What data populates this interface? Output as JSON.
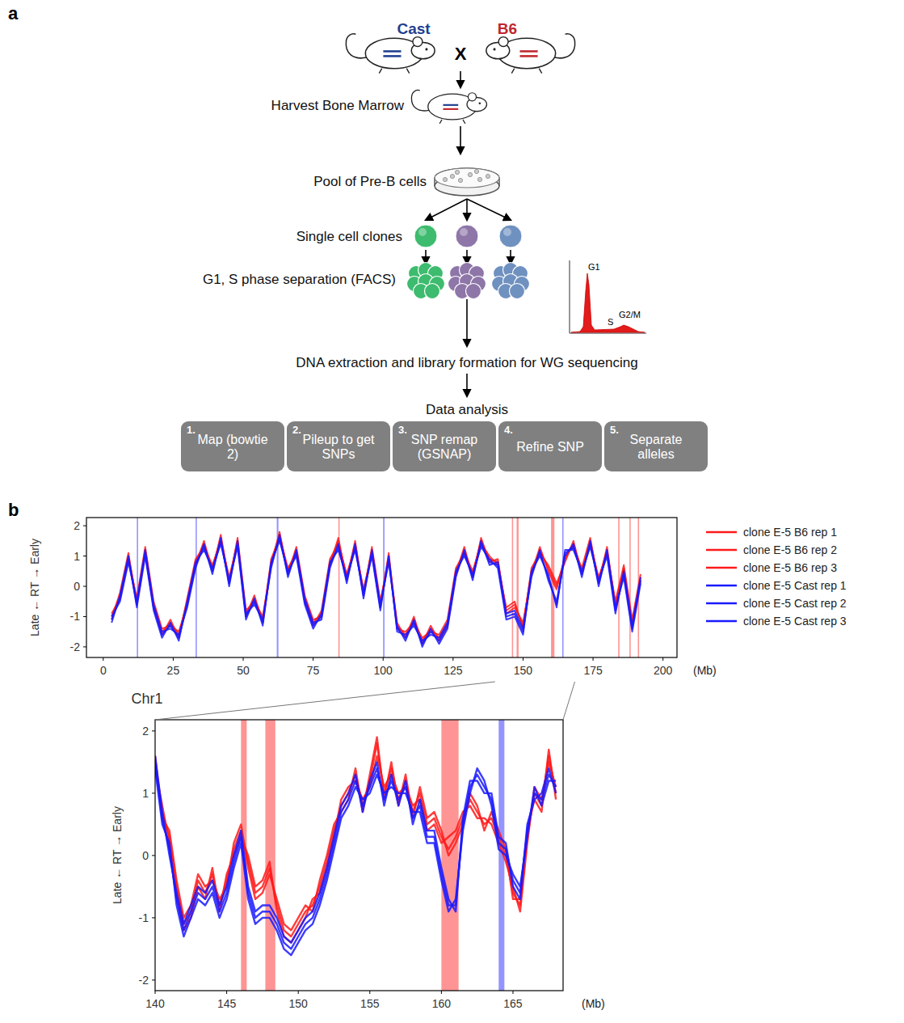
{
  "diagram": {
    "label": "a",
    "cross": {
      "left": {
        "label": "Cast",
        "color": "#1f3f8f"
      },
      "symbol": "X",
      "right": {
        "label": "B6",
        "color": "#c0262d"
      }
    },
    "steps": [
      "Harvest Bone Marrow",
      "Pool of Pre-B cells",
      "Single cell clones",
      "G1, S phase separation (FACS)",
      "DNA extraction and library formation for WG sequencing",
      "Data analysis"
    ],
    "clone_colors": [
      "#3dbb6e",
      "#8e76a8",
      "#6f91c0"
    ],
    "facs_labels": [
      "G1",
      "S",
      "G2/M"
    ],
    "pipeline": [
      {
        "number": "1.",
        "label": "Map (bowtie 2)"
      },
      {
        "number": "2.",
        "label": "Pileup to get SNPs"
      },
      {
        "number": "3.",
        "label": "SNP remap (GSNAP)"
      },
      {
        "number": "4.",
        "label": "Refine SNP"
      },
      {
        "number": "5.",
        "label": "Separate alleles"
      }
    ]
  },
  "chart_data": [
    {
      "type": "line",
      "panel_label": "b",
      "y_label": "Late ← RT → Early",
      "x_label": "Chr1",
      "x_unit": "(Mb)",
      "xlim": [
        -6,
        205
      ],
      "ylim": [
        -2.35,
        2.27
      ],
      "xticks": [
        0,
        25,
        50,
        75,
        100,
        125,
        150,
        175,
        200
      ],
      "yticks": [
        -2,
        -1,
        0,
        1,
        2
      ],
      "legend": "right",
      "x": [
        3,
        6,
        9,
        12,
        15,
        18,
        21,
        24,
        27,
        30,
        33,
        36,
        39,
        42,
        45,
        48,
        51,
        54,
        57,
        60,
        63,
        66,
        69,
        72,
        75,
        78,
        81,
        84,
        87,
        90,
        93,
        96,
        99,
        102,
        105,
        108,
        111,
        114,
        117,
        120,
        123,
        126,
        129,
        132,
        135,
        138,
        141,
        144,
        147,
        150,
        153,
        156,
        159,
        162,
        165,
        168,
        171,
        174,
        177,
        180,
        183,
        186,
        189,
        192
      ],
      "series": [
        {
          "name": "clone E-5 B6 rep 1",
          "color": "#ff1a1a",
          "values": [
            -1.0,
            -0.3,
            1.0,
            -0.5,
            1.2,
            -0.6,
            -1.5,
            -1.2,
            -1.6,
            -0.5,
            0.8,
            1.4,
            0.6,
            1.6,
            0.2,
            1.5,
            -0.9,
            -0.4,
            -1.1,
            0.8,
            1.7,
            0.5,
            1.2,
            -0.4,
            -1.2,
            -0.9,
            0.8,
            1.5,
            0.3,
            1.4,
            -0.2,
            1.2,
            -0.6,
            1.0,
            -1.3,
            -1.6,
            -1.1,
            -1.8,
            -1.4,
            -1.7,
            -1.2,
            0.5,
            1.2,
            0.4,
            1.5,
            0.9,
            0.8,
            -0.8,
            -0.6,
            -1.3,
            0.5,
            1.2,
            0.6,
            0.0,
            0.9,
            1.4,
            0.5,
            1.5,
            0.2,
            1.2,
            -0.6,
            0.6,
            -1.2,
            0.3
          ]
        },
        {
          "name": "clone E-5 B6 rep 2",
          "color": "#ff1a1a",
          "values": [
            -1.1,
            -0.2,
            1.1,
            -0.6,
            1.1,
            -0.7,
            -1.6,
            -1.1,
            -1.7,
            -0.4,
            0.9,
            1.3,
            0.7,
            1.5,
            0.3,
            1.4,
            -1.0,
            -0.3,
            -1.2,
            0.9,
            1.6,
            0.6,
            1.1,
            -0.5,
            -1.3,
            -0.8,
            0.9,
            1.4,
            0.4,
            1.3,
            -0.1,
            1.1,
            -0.7,
            1.1,
            -1.4,
            -1.5,
            -1.2,
            -1.7,
            -1.5,
            -1.6,
            -1.1,
            0.6,
            1.1,
            0.5,
            1.4,
            1.0,
            0.7,
            -0.7,
            -0.5,
            -1.4,
            0.6,
            1.1,
            0.7,
            0.1,
            0.8,
            1.5,
            0.4,
            1.4,
            0.3,
            1.1,
            -0.5,
            0.7,
            -1.1,
            0.4
          ]
        },
        {
          "name": "clone E-5 B6 rep 3",
          "color": "#ff1a1a",
          "values": [
            -0.9,
            -0.4,
            0.9,
            -0.4,
            1.3,
            -0.5,
            -1.4,
            -1.3,
            -1.5,
            -0.6,
            0.7,
            1.5,
            0.5,
            1.7,
            0.1,
            1.6,
            -0.8,
            -0.5,
            -1.0,
            0.7,
            1.8,
            0.4,
            1.3,
            -0.3,
            -1.1,
            -1.0,
            0.7,
            1.6,
            0.2,
            1.5,
            -0.3,
            1.3,
            -0.5,
            0.9,
            -1.2,
            -1.7,
            -1.0,
            -1.9,
            -1.3,
            -1.8,
            -1.3,
            0.4,
            1.3,
            0.3,
            1.6,
            0.8,
            0.9,
            -0.9,
            -0.7,
            -1.2,
            0.4,
            1.3,
            0.5,
            -0.1,
            1.0,
            1.3,
            0.6,
            1.6,
            0.1,
            1.3,
            -0.7,
            0.5,
            -1.3,
            0.2
          ]
        },
        {
          "name": "clone E-5 Cast rep 1",
          "color": "#1a1aff",
          "values": [
            -1.1,
            -0.4,
            0.9,
            -0.6,
            1.1,
            -0.7,
            -1.6,
            -1.3,
            -1.7,
            -0.6,
            0.7,
            1.3,
            0.5,
            1.5,
            0.1,
            1.4,
            -1.0,
            -0.5,
            -1.2,
            0.7,
            1.6,
            0.4,
            1.1,
            -0.5,
            -1.3,
            -1.0,
            0.7,
            1.3,
            0.2,
            1.3,
            -0.3,
            1.1,
            -0.7,
            0.9,
            -1.4,
            -1.7,
            -1.2,
            -1.9,
            -1.5,
            -1.8,
            -1.3,
            0.4,
            1.1,
            0.3,
            1.4,
            0.8,
            0.7,
            -1.0,
            -0.9,
            -1.5,
            0.4,
            1.1,
            0.3,
            -0.6,
            1.1,
            1.3,
            0.4,
            1.4,
            0.1,
            1.1,
            -0.8,
            0.4,
            -1.4,
            0.2
          ]
        },
        {
          "name": "clone E-5 Cast rep 2",
          "color": "#1a1aff",
          "values": [
            -1.2,
            -0.3,
            1.0,
            -0.7,
            1.0,
            -0.8,
            -1.7,
            -1.2,
            -1.8,
            -0.5,
            0.8,
            1.2,
            0.6,
            1.4,
            0.2,
            1.3,
            -1.1,
            -0.4,
            -1.3,
            0.8,
            1.5,
            0.5,
            1.0,
            -0.6,
            -1.4,
            -0.9,
            0.8,
            1.2,
            0.3,
            1.2,
            -0.2,
            1.0,
            -0.8,
            1.0,
            -1.5,
            -1.6,
            -1.3,
            -1.8,
            -1.6,
            -1.7,
            -1.2,
            0.5,
            1.0,
            0.4,
            1.3,
            0.9,
            0.6,
            -1.1,
            -1.0,
            -1.6,
            0.5,
            1.0,
            0.4,
            -0.7,
            1.2,
            1.2,
            0.5,
            1.3,
            0.2,
            1.0,
            -0.9,
            0.5,
            -1.3,
            0.3
          ]
        },
        {
          "name": "clone E-5 Cast rep 3",
          "color": "#1a1aff",
          "values": [
            -1.0,
            -0.5,
            0.8,
            -0.5,
            1.2,
            -0.6,
            -1.5,
            -1.4,
            -1.6,
            -0.7,
            0.6,
            1.4,
            0.4,
            1.6,
            0.0,
            1.5,
            -0.9,
            -0.6,
            -1.1,
            0.6,
            1.7,
            0.3,
            1.2,
            -0.4,
            -1.2,
            -1.1,
            0.6,
            1.4,
            0.1,
            1.4,
            -0.4,
            1.2,
            -0.6,
            0.8,
            -1.3,
            -1.8,
            -1.1,
            -2.0,
            -1.4,
            -1.9,
            -1.4,
            0.3,
            1.2,
            0.2,
            1.5,
            0.7,
            0.8,
            -0.9,
            -0.8,
            -1.4,
            0.3,
            1.2,
            0.2,
            -0.5,
            1.0,
            1.4,
            0.3,
            1.5,
            0.0,
            1.2,
            -0.7,
            0.3,
            -1.5,
            0.1
          ]
        }
      ],
      "regions": [
        {
          "start": 12,
          "end": 12.4,
          "color": "#0000ff"
        },
        {
          "start": 33,
          "end": 33.4,
          "color": "#0000ff"
        },
        {
          "start": 62,
          "end": 62.6,
          "color": "#0000ff"
        },
        {
          "start": 100,
          "end": 100.5,
          "color": "#0000ff"
        },
        {
          "start": 164,
          "end": 164.4,
          "color": "#0000ff"
        },
        {
          "start": 84,
          "end": 84.4,
          "color": "#ff0000"
        },
        {
          "start": 146,
          "end": 146.4,
          "color": "#ff0000"
        },
        {
          "start": 147.7,
          "end": 148.4,
          "color": "#ff0000"
        },
        {
          "start": 160,
          "end": 161.2,
          "color": "#ff0000"
        },
        {
          "start": 184,
          "end": 184.4,
          "color": "#ff0000"
        },
        {
          "start": 188,
          "end": 188.4,
          "color": "#ff0000"
        },
        {
          "start": 191,
          "end": 191.4,
          "color": "#ff0000"
        }
      ]
    },
    {
      "type": "line",
      "y_label": "Late ← RT → Early",
      "x_unit": "(Mb)",
      "xlim": [
        140,
        168.5
      ],
      "ylim": [
        -2.17,
        2.18
      ],
      "xticks": [
        140,
        145,
        150,
        155,
        160,
        165
      ],
      "yticks": [
        -2,
        -1,
        0,
        1,
        2
      ],
      "x": [
        140,
        140.5,
        141,
        141.5,
        142,
        142.5,
        143,
        143.5,
        144,
        144.5,
        145,
        145.5,
        146,
        146.5,
        147,
        147.5,
        148,
        148.5,
        149,
        149.5,
        150,
        150.5,
        151,
        151.5,
        152,
        152.5,
        153,
        153.5,
        154,
        154.5,
        155,
        155.5,
        156,
        156.5,
        157,
        157.5,
        158,
        158.5,
        159,
        159.5,
        160,
        160.5,
        161,
        161.5,
        162,
        162.5,
        163,
        163.5,
        164,
        164.5,
        165,
        165.5,
        166,
        166.5,
        167,
        167.5,
        168
      ],
      "series": [
        {
          "color": "#ff1a1a",
          "values": [
            1.5,
            0.7,
            0.3,
            -0.5,
            -1.1,
            -0.9,
            -0.4,
            -0.6,
            -0.3,
            -0.8,
            -0.4,
            0.1,
            0.4,
            -0.1,
            -0.6,
            -0.5,
            -0.2,
            -0.8,
            -1.2,
            -1.3,
            -1.1,
            -0.9,
            -0.8,
            -0.5,
            -0.1,
            0.4,
            0.8,
            1.0,
            1.3,
            0.8,
            1.2,
            1.8,
            1.0,
            1.4,
            0.9,
            1.2,
            0.7,
            1.0,
            0.5,
            0.6,
            0.3,
            0.1,
            0.3,
            0.6,
            0.9,
            0.7,
            0.5,
            0.6,
            0.3,
            0.0,
            -0.6,
            -0.8,
            0.3,
            1.0,
            0.8,
            1.6,
            1.0
          ]
        },
        {
          "color": "#ff1a1a",
          "values": [
            1.4,
            0.8,
            0.2,
            -0.6,
            -1.2,
            -1.0,
            -0.5,
            -0.7,
            -0.2,
            -0.9,
            -0.3,
            0.0,
            0.3,
            0.0,
            -0.5,
            -0.4,
            -0.1,
            -0.9,
            -1.3,
            -1.4,
            -1.2,
            -1.0,
            -0.7,
            -0.6,
            -0.2,
            0.3,
            0.9,
            1.1,
            1.2,
            0.9,
            1.1,
            1.6,
            1.1,
            1.3,
            1.0,
            1.1,
            0.8,
            0.9,
            0.4,
            0.5,
            0.2,
            0.3,
            0.4,
            0.7,
            0.8,
            0.6,
            0.6,
            0.5,
            0.2,
            -0.1,
            -0.5,
            -0.9,
            0.2,
            1.1,
            0.9,
            1.5,
            1.1
          ]
        },
        {
          "color": "#ff1a1a",
          "values": [
            1.6,
            0.6,
            0.4,
            -0.4,
            -1.0,
            -0.8,
            -0.3,
            -0.5,
            -0.4,
            -0.7,
            -0.5,
            0.2,
            0.5,
            -0.2,
            -0.7,
            -0.6,
            -0.3,
            -0.7,
            -1.1,
            -1.2,
            -1.0,
            -0.8,
            -0.9,
            -0.4,
            0.0,
            0.5,
            0.7,
            0.9,
            1.4,
            0.7,
            1.3,
            1.9,
            0.9,
            1.5,
            0.8,
            1.3,
            0.6,
            1.1,
            0.6,
            0.7,
            0.4,
            0.0,
            0.2,
            0.5,
            1.0,
            0.8,
            0.4,
            0.7,
            0.4,
            0.1,
            -0.7,
            -0.7,
            0.4,
            0.9,
            0.7,
            1.7,
            0.9
          ]
        },
        {
          "color": "#1a1aff",
          "values": [
            1.5,
            0.6,
            0.1,
            -0.7,
            -1.2,
            -0.9,
            -0.6,
            -0.7,
            -0.5,
            -0.9,
            -0.6,
            -0.1,
            0.3,
            -0.6,
            -1.0,
            -0.9,
            -0.9,
            -1.1,
            -1.4,
            -1.5,
            -1.3,
            -1.1,
            -1.0,
            -0.7,
            -0.3,
            0.2,
            0.7,
            0.9,
            1.2,
            0.8,
            1.1,
            1.4,
            0.9,
            1.2,
            0.9,
            1.1,
            0.6,
            0.8,
            0.3,
            0.3,
            -0.3,
            -0.8,
            -0.8,
            0.5,
            1.1,
            1.3,
            1.1,
            0.9,
            0.2,
            0.1,
            -0.4,
            -0.6,
            0.4,
            1.0,
            0.9,
            1.3,
            1.1
          ]
        },
        {
          "color": "#1a1aff",
          "values": [
            1.4,
            0.5,
            0.2,
            -0.8,
            -1.3,
            -1.0,
            -0.7,
            -0.8,
            -0.6,
            -1.0,
            -0.7,
            -0.2,
            0.2,
            -0.7,
            -1.1,
            -1.0,
            -1.0,
            -1.2,
            -1.5,
            -1.6,
            -1.4,
            -1.2,
            -1.1,
            -0.8,
            -0.4,
            0.1,
            0.6,
            0.8,
            1.1,
            0.9,
            1.0,
            1.3,
            1.0,
            1.1,
            1.0,
            1.0,
            0.7,
            0.7,
            0.2,
            0.2,
            -0.4,
            -0.9,
            -0.7,
            0.4,
            1.0,
            1.4,
            1.2,
            0.8,
            0.1,
            0.0,
            -0.3,
            -0.5,
            0.3,
            1.1,
            0.8,
            1.2,
            1.2
          ]
        },
        {
          "color": "#1a1aff",
          "values": [
            1.6,
            0.7,
            0.0,
            -0.6,
            -1.1,
            -0.8,
            -0.5,
            -0.6,
            -0.4,
            -0.8,
            -0.5,
            0.0,
            0.4,
            -0.5,
            -0.9,
            -0.8,
            -0.8,
            -1.0,
            -1.3,
            -1.4,
            -1.2,
            -1.0,
            -0.9,
            -0.6,
            -0.2,
            0.3,
            0.8,
            1.0,
            1.3,
            0.7,
            1.2,
            1.5,
            0.8,
            1.3,
            0.8,
            1.2,
            0.5,
            0.9,
            0.4,
            0.4,
            -0.2,
            -0.7,
            -0.9,
            0.6,
            1.2,
            1.2,
            1.0,
            1.0,
            0.3,
            0.2,
            -0.5,
            -0.7,
            0.5,
            0.9,
            1.0,
            1.4,
            1.0
          ]
        }
      ],
      "regions": [
        {
          "start": 146,
          "end": 146.4,
          "color": "#ff0000"
        },
        {
          "start": 147.7,
          "end": 148.4,
          "color": "#ff0000"
        },
        {
          "start": 160,
          "end": 161.2,
          "color": "#ff0000"
        },
        {
          "start": 164,
          "end": 164.4,
          "color": "#0000ff"
        }
      ]
    }
  ]
}
